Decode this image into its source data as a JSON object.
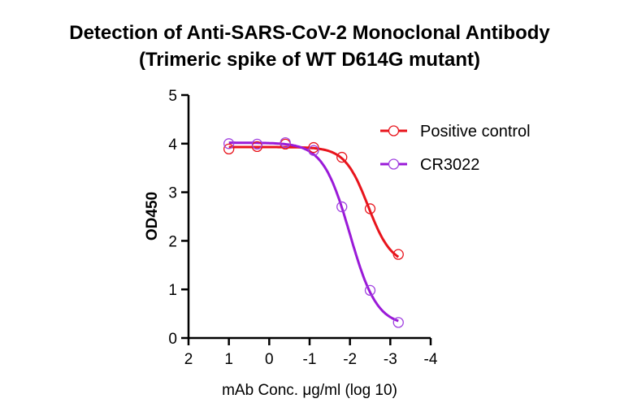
{
  "chart_data": {
    "type": "line",
    "title": "Detection of Anti-SARS-CoV-2 Monoclonal Antibody",
    "subtitle": "(Trimeric spike of WT D614G mutant)",
    "xlabel": "mAb Conc. μg/ml (log 10)",
    "ylabel": "OD450",
    "xlim": [
      2,
      -4
    ],
    "ylim": [
      0,
      5
    ],
    "x_ticks": [
      "2",
      "1",
      "0",
      "-1",
      "-2",
      "-3",
      "-4"
    ],
    "y_ticks": [
      "0",
      "1",
      "2",
      "3",
      "4",
      "5"
    ],
    "grid": false,
    "legend_position": "top-right",
    "x": [
      1,
      0.3,
      -0.4,
      -1.1,
      -1.8,
      -2.5,
      -3.2
    ],
    "series": [
      {
        "name": "Positive control",
        "color": "#e8141c",
        "marker_color": "#e8141c",
        "values": [
          3.89,
          3.94,
          3.99,
          3.92,
          3.72,
          2.66,
          1.72
        ],
        "fit": {
          "top": 3.93,
          "bottom": 1.5,
          "logEC50": -2.45,
          "hill": 1.5
        }
      },
      {
        "name": "CR3022",
        "color": "#9a1ad8",
        "marker_color": "#a040e0",
        "values": [
          4.0,
          3.99,
          4.02,
          3.86,
          2.7,
          0.98,
          0.32
        ],
        "fit": {
          "top": 4.02,
          "bottom": 0.25,
          "logEC50": -2.0,
          "hill": 1.3
        }
      }
    ]
  }
}
